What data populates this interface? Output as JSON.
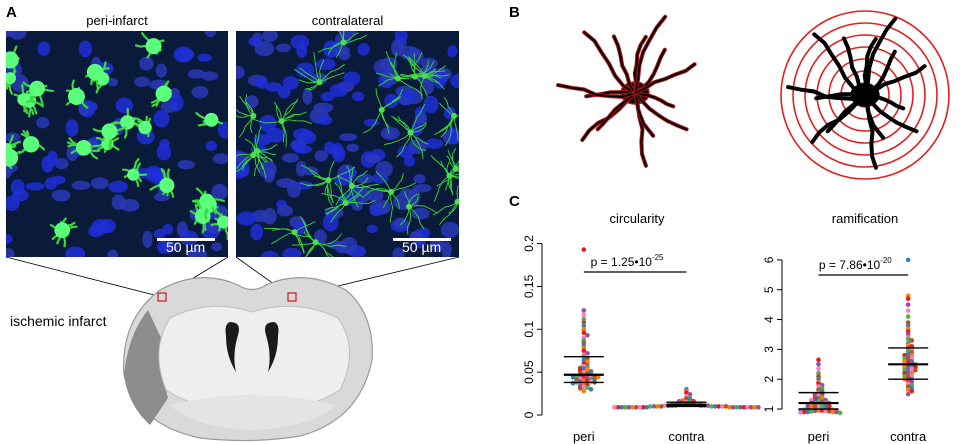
{
  "panels": {
    "A": {
      "letter": "A",
      "left_title": "peri-infarct",
      "right_title": "contralateral",
      "left_scale": "50 µm",
      "right_scale": "50 µm",
      "brain_label": "ischemic infarct"
    },
    "B": {
      "letter": "B"
    },
    "C": {
      "letter": "C"
    }
  },
  "colors": {
    "microglia": "#3ad83a",
    "nuclei": "#1a2ad0",
    "background": "#0a1a3a",
    "rings": "#e32020",
    "outline": "#b01010",
    "brain_outer": "#d9d9d9",
    "brain_inner": "#eeeeee",
    "infarct": "#8c8c8c",
    "ventricle": "#1a1a1a"
  },
  "chart_data": [
    {
      "type": "scatter",
      "title": "circularity",
      "categories": [
        "peri",
        "contra"
      ],
      "ylim": [
        0,
        0.21
      ],
      "yticks": [
        "0",
        "0.05",
        "0.1",
        "0.15",
        "0.2"
      ],
      "ytick_values": [
        0,
        0.05,
        0.1,
        0.15,
        0.2
      ],
      "p_label_prefix": "p = 1.25•10",
      "p_label_exp": "-25",
      "summary": [
        {
          "category": "peri",
          "q1": 0.038,
          "median": 0.047,
          "q3": 0.068
        },
        {
          "category": "contra",
          "q1": 0.01,
          "median": 0.012,
          "q3": 0.015
        }
      ],
      "points": {
        "peri": [
          0.193,
          0.122,
          0.117,
          0.112,
          0.108,
          0.104,
          0.1,
          0.096,
          0.093,
          0.09,
          0.087,
          0.084,
          0.081,
          0.078,
          0.075,
          0.072,
          0.07,
          0.068,
          0.066,
          0.064,
          0.062,
          0.06,
          0.058,
          0.057,
          0.056,
          0.055,
          0.054,
          0.053,
          0.052,
          0.051,
          0.05,
          0.049,
          0.048,
          0.048,
          0.047,
          0.047,
          0.046,
          0.046,
          0.045,
          0.045,
          0.044,
          0.044,
          0.043,
          0.043,
          0.042,
          0.042,
          0.041,
          0.041,
          0.04,
          0.04,
          0.039,
          0.039,
          0.038,
          0.038,
          0.037,
          0.036,
          0.035,
          0.034,
          0.033,
          0.032,
          0.031,
          0.03,
          0.028
        ],
        "contra": [
          0.03,
          0.028,
          0.026,
          0.024,
          0.022,
          0.02,
          0.019,
          0.018,
          0.017,
          0.016,
          0.016,
          0.015,
          0.015,
          0.014,
          0.014,
          0.014,
          0.013,
          0.013,
          0.013,
          0.013,
          0.012,
          0.012,
          0.012,
          0.012,
          0.012,
          0.012,
          0.011,
          0.011,
          0.011,
          0.011,
          0.011,
          0.011,
          0.011,
          0.01,
          0.01,
          0.01,
          0.01,
          0.01,
          0.01,
          0.01,
          0.01,
          0.01,
          0.009,
          0.009,
          0.009,
          0.009,
          0.009,
          0.009,
          0.009,
          0.009,
          0.009,
          0.009,
          0.009,
          0.009,
          0.009,
          0.009,
          0.009,
          0.009,
          0.009,
          0.009,
          0.009
        ]
      }
    },
    {
      "type": "scatter",
      "title": "ramification",
      "categories": [
        "peri",
        "contra"
      ],
      "ylim": [
        0.8,
        6.5
      ],
      "yticks": [
        "1",
        "2",
        "3",
        "4",
        "5",
        "6"
      ],
      "ytick_values": [
        1,
        2,
        3,
        4,
        5,
        6
      ],
      "p_label_prefix": "p = 7.86•10",
      "p_label_exp": "-20",
      "summary": [
        {
          "category": "peri",
          "q1": 1.0,
          "median": 1.2,
          "q3": 1.55
        },
        {
          "category": "contra",
          "q1": 2.0,
          "median": 2.5,
          "q3": 3.05
        }
      ],
      "points": {
        "peri": [
          2.65,
          2.5,
          2.35,
          2.2,
          2.1,
          2.0,
          1.9,
          1.85,
          1.8,
          1.75,
          1.7,
          1.65,
          1.6,
          1.55,
          1.5,
          1.5,
          1.45,
          1.4,
          1.4,
          1.35,
          1.35,
          1.3,
          1.3,
          1.3,
          1.25,
          1.25,
          1.25,
          1.2,
          1.2,
          1.2,
          1.15,
          1.15,
          1.15,
          1.1,
          1.1,
          1.1,
          1.1,
          1.05,
          1.05,
          1.05,
          1.0,
          1.0,
          1.0,
          1.0,
          0.98,
          0.98,
          0.96,
          0.96,
          0.95,
          0.95,
          0.94,
          0.93,
          0.92,
          0.92,
          0.9,
          0.9,
          0.9,
          0.9,
          0.88,
          0.87
        ],
        "contra": [
          6.0,
          4.8,
          4.7,
          4.5,
          4.3,
          4.1,
          3.9,
          3.8,
          3.7,
          3.6,
          3.5,
          3.4,
          3.35,
          3.3,
          3.2,
          3.15,
          3.1,
          3.05,
          3.0,
          2.95,
          2.9,
          2.85,
          2.8,
          2.8,
          2.75,
          2.7,
          2.7,
          2.65,
          2.6,
          2.6,
          2.55,
          2.55,
          2.5,
          2.5,
          2.45,
          2.45,
          2.4,
          2.4,
          2.35,
          2.35,
          2.3,
          2.3,
          2.25,
          2.2,
          2.2,
          2.15,
          2.1,
          2.1,
          2.05,
          2.0,
          2.0,
          1.95,
          1.9,
          1.85,
          1.8,
          1.75,
          1.7,
          1.65,
          1.6,
          1.5
        ]
      }
    }
  ]
}
